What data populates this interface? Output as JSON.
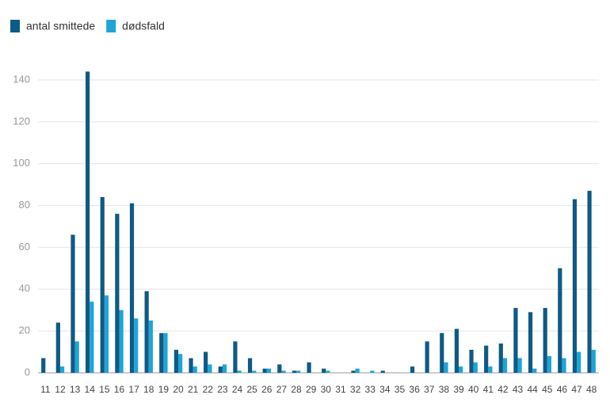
{
  "chart_data": {
    "type": "bar",
    "categories": [
      "11",
      "12",
      "13",
      "14",
      "15",
      "16",
      "17",
      "18",
      "19",
      "20",
      "21",
      "22",
      "23",
      "24",
      "25",
      "26",
      "27",
      "28",
      "29",
      "30",
      "31",
      "32",
      "33",
      "34",
      "35",
      "36",
      "37",
      "38",
      "39",
      "40",
      "41",
      "42",
      "43",
      "44",
      "45",
      "46",
      "47",
      "48"
    ],
    "series": [
      {
        "name": "antal smittede",
        "color": "#0e5a85",
        "values": [
          7,
          24,
          66,
          144,
          84,
          76,
          81,
          39,
          19,
          11,
          7,
          10,
          3,
          15,
          7,
          2,
          4,
          1,
          5,
          2,
          0,
          1,
          0,
          1,
          0,
          3,
          15,
          19,
          21,
          11,
          13,
          14,
          31,
          29,
          31,
          50,
          83,
          87
        ]
      },
      {
        "name": "dødsfald",
        "color": "#1ea5d6",
        "values": [
          0,
          3,
          15,
          34,
          37,
          30,
          26,
          25,
          19,
          9,
          3,
          4,
          4,
          1,
          1,
          2,
          1,
          1,
          0,
          1,
          0,
          2,
          1,
          0,
          0,
          0,
          0,
          5,
          3,
          5,
          3,
          7,
          7,
          2,
          8,
          7,
          10,
          11
        ]
      }
    ],
    "ylim": [
      0,
      150
    ],
    "yticks": [
      0,
      20,
      40,
      60,
      80,
      100,
      120,
      140
    ],
    "grid": true
  }
}
